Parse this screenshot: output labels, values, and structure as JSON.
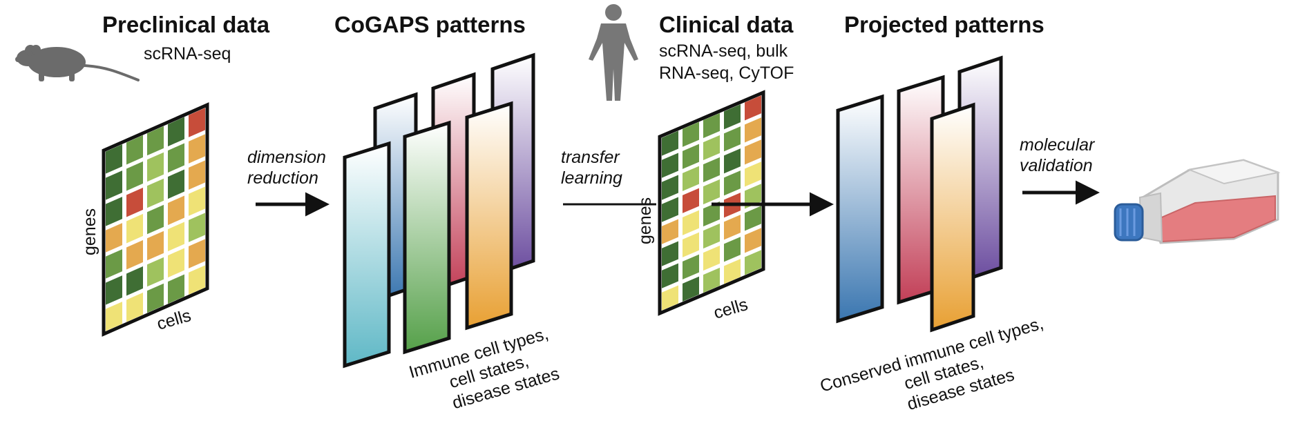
{
  "sections": {
    "preclinical": {
      "title": "Preclinical data",
      "subtitle": "scRNA-seq"
    },
    "cogaps": {
      "title": "CoGAPS patterns"
    },
    "clinical": {
      "title": "Clinical data",
      "subtitle_line1": "scRNA-seq, bulk",
      "subtitle_line2": "RNA-seq, CyTOF"
    },
    "projected": {
      "title": "Projected patterns"
    }
  },
  "steps": {
    "dimension_reduction": {
      "line1": "dimension",
      "line2": "reduction"
    },
    "transfer_learning": {
      "line1": "transfer",
      "line2": "learning"
    },
    "molecular_validation": {
      "line1": "molecular",
      "line2": "validation"
    }
  },
  "axes": {
    "genes": "genes",
    "cells": "cells"
  },
  "annotations": {
    "cogaps": [
      "Immune cell types,",
      "cell states,",
      "disease states"
    ],
    "projected": [
      "Conserved immune cell types,",
      "cell states,",
      "disease states"
    ]
  },
  "icons": [
    "mouse-icon",
    "human-icon",
    "cell-culture-flask-icon",
    "arrow-right-icon"
  ],
  "colors": {
    "dark_green": "#3f6e34",
    "mid_green": "#6b9a46",
    "light_green": "#9fc25e",
    "yellow": "#efe276",
    "orange": "#e4a94f",
    "red": "#c74d3a",
    "teal": "#6dbfca",
    "green_pattern": "#5ea450",
    "orange_pattern": "#e8a33c",
    "blue_pattern": "#3f7bb2",
    "red_pattern": "#c64659",
    "purple_pattern": "#6d4ea0"
  }
}
